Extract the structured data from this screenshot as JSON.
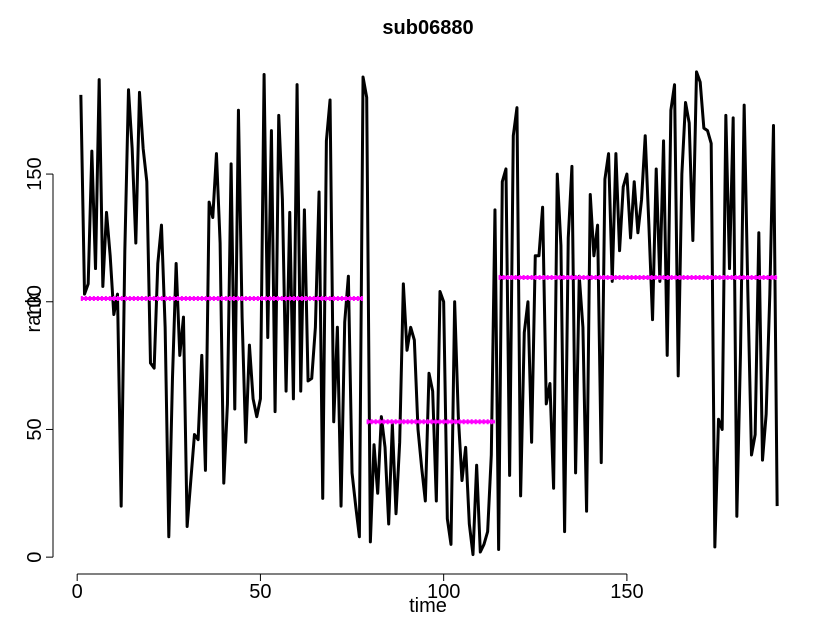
{
  "chart_data": {
    "type": "line",
    "title": "sub06880",
    "xlabel": "time",
    "ylabel": "rank",
    "x": [
      1,
      2,
      3,
      4,
      5,
      6,
      7,
      8,
      9,
      10,
      11,
      12,
      13,
      14,
      15,
      16,
      17,
      18,
      19,
      20,
      21,
      22,
      23,
      24,
      25,
      26,
      27,
      28,
      29,
      30,
      31,
      32,
      33,
      34,
      35,
      36,
      37,
      38,
      39,
      40,
      41,
      42,
      43,
      44,
      45,
      46,
      47,
      48,
      49,
      50,
      51,
      52,
      53,
      54,
      55,
      56,
      57,
      58,
      59,
      60,
      61,
      62,
      63,
      64,
      65,
      66,
      67,
      68,
      69,
      70,
      71,
      72,
      73,
      74,
      75,
      76,
      77,
      78,
      79,
      80,
      81,
      82,
      83,
      84,
      85,
      86,
      87,
      88,
      89,
      90,
      91,
      92,
      93,
      94,
      95,
      96,
      97,
      98,
      99,
      100,
      101,
      102,
      103,
      104,
      105,
      106,
      107,
      108,
      109,
      110,
      111,
      112,
      113,
      114,
      115,
      116,
      117,
      118,
      119,
      120,
      121,
      122,
      123,
      124,
      125,
      126,
      127,
      128,
      129,
      130,
      131,
      132,
      133,
      134,
      135,
      136,
      137,
      138,
      139,
      140,
      141,
      142,
      143,
      144,
      145,
      146,
      147,
      148,
      149,
      150,
      151,
      152,
      153,
      154,
      155,
      156,
      157,
      158,
      159,
      160,
      161,
      162,
      163,
      164,
      165,
      166,
      167,
      168,
      169,
      170,
      171,
      172,
      173,
      174,
      175,
      176,
      177,
      178,
      179,
      180,
      181,
      182,
      183,
      184,
      185,
      186,
      187,
      188,
      189,
      190,
      191
    ],
    "series": [
      {
        "color": "#000000",
        "values": [
          181,
          103,
          107,
          159,
          113,
          187,
          106,
          135,
          118,
          95,
          103,
          20,
          120,
          183,
          160,
          123,
          182,
          160,
          147,
          76,
          74,
          115,
          130,
          90,
          8,
          70,
          115,
          79,
          94,
          12,
          30,
          48,
          46,
          79,
          34,
          139,
          133,
          158,
          123,
          29,
          60,
          154,
          58,
          175,
          94,
          45,
          83,
          62,
          55,
          62,
          189,
          86,
          167,
          57,
          173,
          140,
          65,
          135,
          62,
          185,
          65,
          136,
          69,
          70,
          90,
          143,
          23,
          163,
          179,
          53,
          90,
          20,
          92,
          110,
          33,
          20,
          8,
          188,
          180,
          6,
          44,
          25,
          55,
          43,
          13,
          52,
          17,
          45,
          107,
          81,
          90,
          85,
          50,
          35,
          22,
          72,
          65,
          22,
          104,
          100,
          15,
          5,
          100,
          55,
          30,
          43,
          13,
          1,
          36,
          2,
          5,
          10,
          40,
          136,
          3,
          147,
          152,
          32,
          165,
          176,
          24,
          88,
          100,
          45,
          118,
          118,
          137,
          60,
          68,
          27,
          150,
          122,
          10,
          125,
          153,
          33,
          110,
          90,
          18,
          142,
          118,
          130,
          37,
          148,
          158,
          108,
          158,
          120,
          145,
          150,
          125,
          147,
          127,
          140,
          165,
          130,
          93,
          152,
          108,
          163,
          79,
          175,
          185,
          71,
          150,
          178,
          170,
          124,
          190,
          186,
          168,
          167,
          162,
          4,
          54,
          50,
          173,
          113,
          172,
          16,
          80,
          177,
          104,
          40,
          48,
          127,
          38,
          56,
          103,
          169,
          20
        ]
      }
    ],
    "segments": [
      {
        "x": [
          1,
          78
        ],
        "y": 101.3
      },
      {
        "x": [
          79,
          114
        ],
        "y": 53
      },
      {
        "x": [
          115,
          191
        ],
        "y": 109.5
      }
    ],
    "segment_color": "#ff00ff",
    "xlim": [
      -6.6,
      198.6
    ],
    "ylim": [
      -6.6,
      197.6
    ],
    "xticks": [
      0,
      50,
      100,
      150
    ],
    "yticks": [
      0,
      50,
      100,
      150
    ]
  }
}
